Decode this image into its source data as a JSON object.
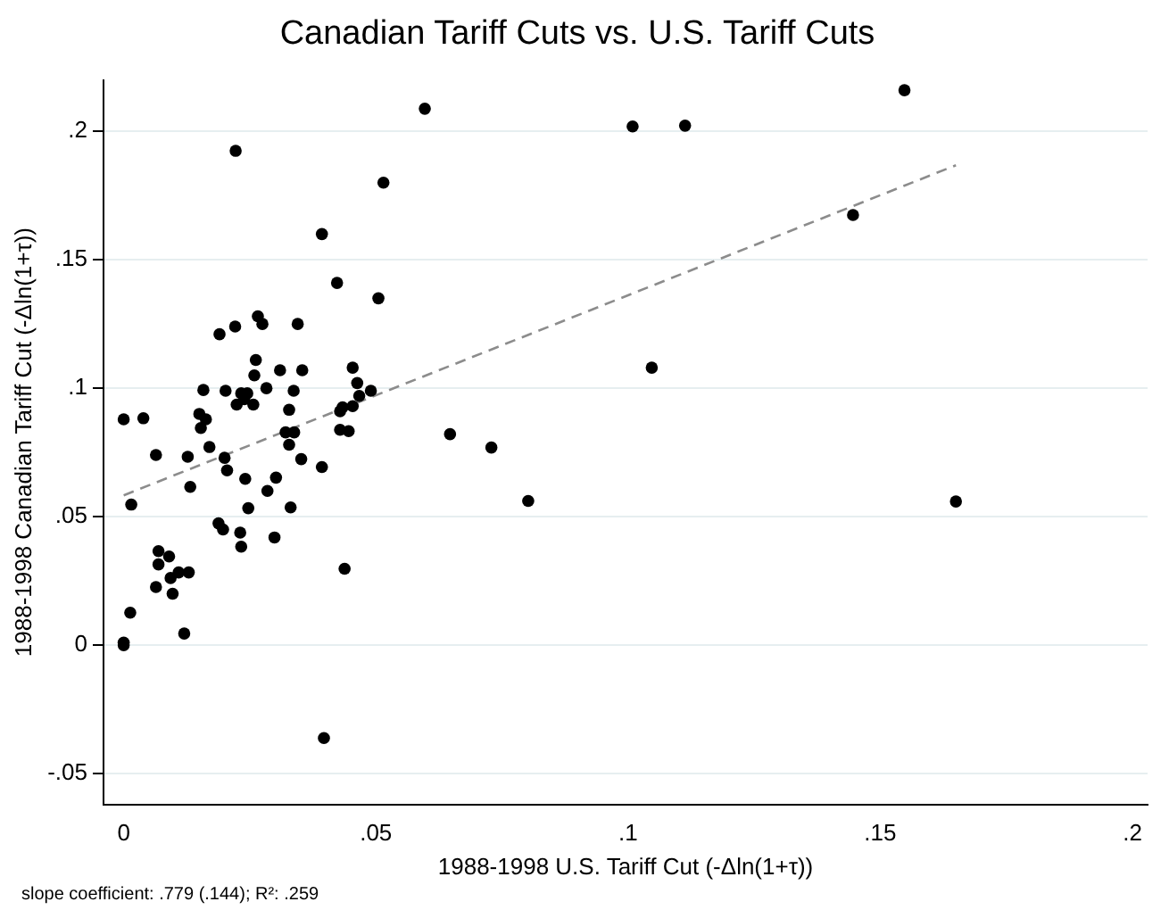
{
  "chart_data": {
    "type": "scatter",
    "title": "Canadian Tariff Cuts vs. U.S. Tariff Cuts",
    "xlabel": "1988-1998 U.S. Tariff Cut (-Δln(1+τ))",
    "ylabel": "1988-1998 Canadian Tariff Cut (-Δln(1+τ))",
    "annotations": [
      "slope coefficient: .779 (.144); R²: .259"
    ],
    "xlim": [
      -0.004,
      0.203
    ],
    "ylim": [
      -0.062,
      0.22
    ],
    "xticks": [
      0,
      {
        "value": 0.05,
        "label": ".05"
      },
      {
        "value": 0.1,
        "label": ".1"
      },
      {
        "value": 0.15,
        "label": ".15"
      },
      {
        "value": 0.2,
        "label": ".2"
      }
    ],
    "yticks": [
      {
        "value": -0.05,
        "label": "-.05"
      },
      0,
      {
        "value": 0.05,
        "label": ".05"
      },
      {
        "value": 0.1,
        "label": ".1"
      },
      {
        "value": 0.15,
        "label": ".15"
      },
      {
        "value": 0.2,
        "label": ".2"
      }
    ],
    "grid": "y",
    "legend": false,
    "marker": "circle",
    "series": [
      {
        "type": "scatter",
        "color": "#000000",
        "x": [
          0.0393,
          0.0423,
          0.0505,
          0.0266,
          0.0275,
          0.0221,
          0.019,
          0.0345,
          0.0262,
          0.0259,
          0.031,
          0.0354,
          0.0454,
          0.0463,
          0.0467,
          0.049,
          0.0454,
          0.0429,
          0.0434,
          0.0429,
          0.0446,
          0.0337,
          0.0328,
          0.0283,
          0.0233,
          0.0245,
          0.0239,
          0.0224,
          0.0257,
          0.0202,
          0.0158,
          0.015,
          0.0163,
          0.0153,
          0,
          0.0039,
          0.0064,
          0.0127,
          0.017,
          0.02,
          0.0205,
          0.0241,
          0.0132,
          0.0285,
          0.0302,
          0.0352,
          0.0393,
          0.0321,
          0.0338,
          0.0328,
          0.0647,
          0.0015,
          0.0247,
          0.0331,
          0.0188,
          0.0197,
          0.0231,
          0.0233,
          0.0299,
          0.0438,
          0.0069,
          0.009,
          0.0069,
          0.0064,
          0.0093,
          0.0097,
          0.0109,
          0.0129,
          0.012,
          0.0013,
          0,
          0,
          0.0397,
          0.0222,
          0.0597,
          0.0515,
          0.1009,
          0.1113,
          0.1548,
          0.1446,
          0.1047,
          0.0729,
          0.0802,
          0.165
        ],
        "values": [
          0.16,
          0.141,
          0.135,
          0.128,
          0.125,
          0.124,
          0.121,
          0.125,
          0.111,
          0.105,
          0.107,
          0.107,
          0.108,
          0.102,
          0.097,
          0.099,
          0.093,
          0.091,
          0.0926,
          0.0838,
          0.0833,
          0.099,
          0.0916,
          0.1,
          0.098,
          0.098,
          0.0957,
          0.0936,
          0.0936,
          0.099,
          0.0993,
          0.09,
          0.0879,
          0.0845,
          0.0879,
          0.0883,
          0.074,
          0.0733,
          0.0771,
          0.0729,
          0.068,
          0.0647,
          0.0616,
          0.06,
          0.0652,
          0.0724,
          0.0693,
          0.0828,
          0.0828,
          0.078,
          0.0821,
          0.0547,
          0.0533,
          0.0536,
          0.0474,
          0.045,
          0.0438,
          0.0383,
          0.0419,
          0.0297,
          0.0366,
          0.0345,
          0.0314,
          0.0226,
          0.0261,
          0.02,
          0.0283,
          0.0283,
          0.0045,
          0.0126,
          0.001,
          0,
          -0.0362,
          0.1924,
          0.2088,
          0.18,
          0.2019,
          0.2022,
          0.216,
          0.1674,
          0.108,
          0.0769,
          0.0561,
          0.0559
        ]
      },
      {
        "type": "line",
        "color": "#8c8c8c",
        "line_style": "dashed",
        "marker": "none",
        "x": [
          0,
          0.165
        ],
        "values": [
          0.0583,
          0.1868
        ]
      }
    ]
  }
}
